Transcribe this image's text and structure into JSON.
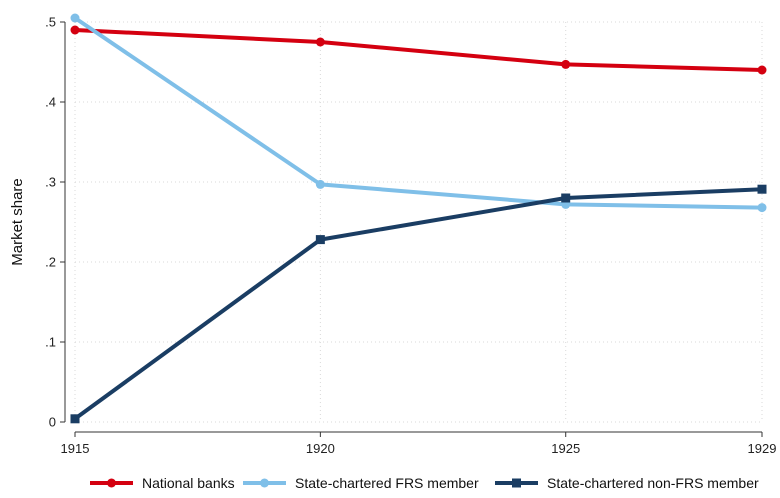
{
  "chart_data": {
    "type": "line",
    "title": "",
    "xlabel": "",
    "ylabel": "Market share",
    "x": [
      1915,
      1920,
      1925,
      1929
    ],
    "xticks": [
      "1915",
      "1920",
      "1925",
      "1929"
    ],
    "ylim": [
      0,
      0.5
    ],
    "yticks": [
      {
        "value": 0,
        "label": "0"
      },
      {
        "value": 0.1,
        "label": ".1"
      },
      {
        "value": 0.2,
        "label": ".2"
      },
      {
        "value": 0.3,
        "label": ".3"
      },
      {
        "value": 0.4,
        "label": ".4"
      },
      {
        "value": 0.5,
        "label": ".5"
      }
    ],
    "grid": true,
    "legend_position": "bottom",
    "series": [
      {
        "name": "National banks",
        "values": [
          0.49,
          0.475,
          0.447,
          0.44
        ],
        "color": "#d40010",
        "marker": "circle"
      },
      {
        "name": "State-chartered FRS member",
        "values": [
          0.505,
          0.297,
          0.272,
          0.268
        ],
        "color": "#7fbfe8",
        "marker": "circle"
      },
      {
        "name": "State-chartered non-FRS member",
        "values": [
          0.004,
          0.228,
          0.28,
          0.291
        ],
        "color": "#1a3d63",
        "marker": "square"
      }
    ]
  }
}
